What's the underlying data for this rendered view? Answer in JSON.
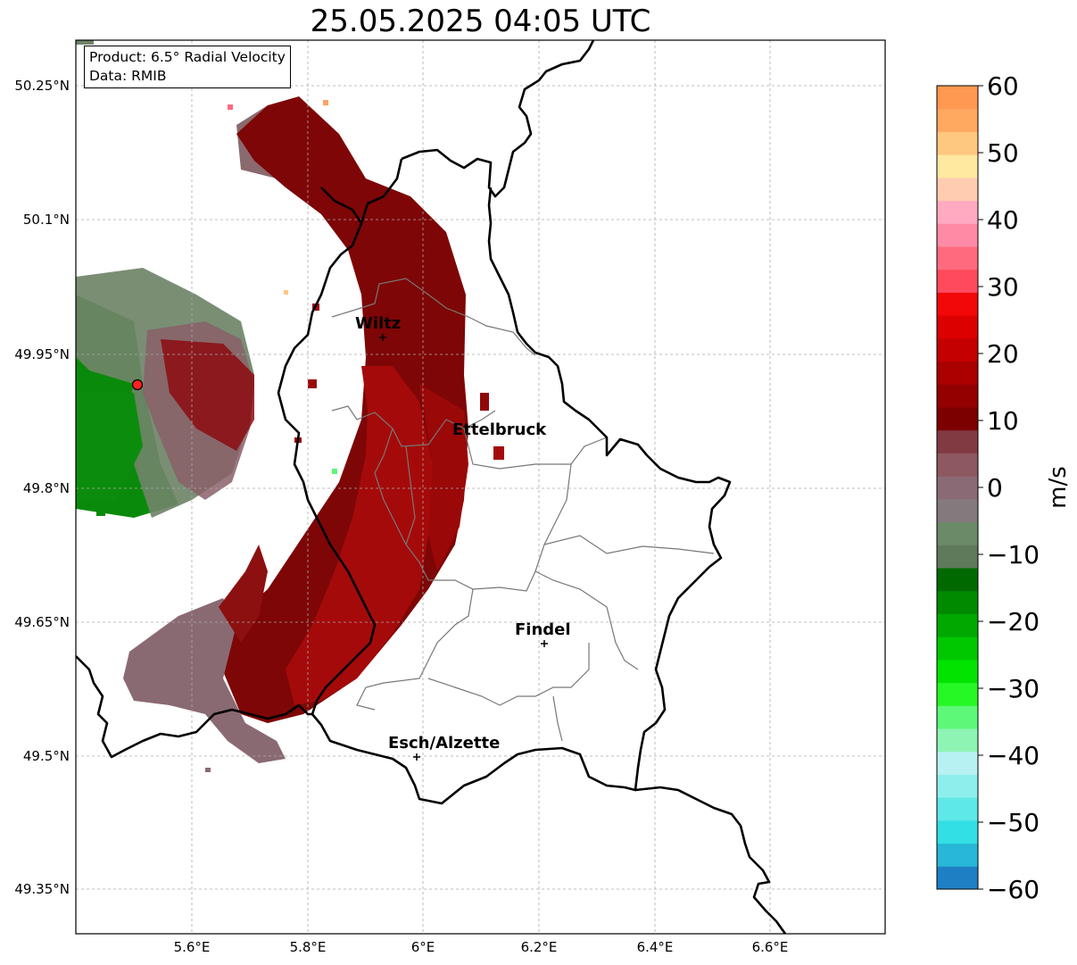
{
  "title": "25.05.2025 04:05 UTC",
  "info": {
    "product_line": "Product: 6.5° Radial Velocity",
    "data_line": "Data: RMIB"
  },
  "map": {
    "lon_ticks": [
      "5.6°E",
      "5.8°E",
      "6°E",
      "6.2°E",
      "6.4°E",
      "6.6°E"
    ],
    "lat_ticks": [
      "50.25°N",
      "50.1°N",
      "49.95°N",
      "49.8°N",
      "49.65°N",
      "49.5°N",
      "49.35°N"
    ],
    "gridlines": true,
    "cities": [
      {
        "name": "Wiltz",
        "lon": 5.93,
        "lat": 49.97
      },
      {
        "name": "Ettelbruck",
        "lon": 6.1,
        "lat": 49.85
      },
      {
        "name": "Findel",
        "lon": 6.21,
        "lat": 49.63
      },
      {
        "name": "Esch/Alzette",
        "lon": 5.99,
        "lat": 49.5
      }
    ],
    "radar_site": {
      "lon": 5.5,
      "lat": 49.915
    }
  },
  "colorbar": {
    "label": "m/s",
    "min": -60,
    "max": 60,
    "ticks": [
      "60",
      "50",
      "40",
      "30",
      "20",
      "10",
      "0",
      "−10",
      "−20",
      "−30",
      "−40",
      "−50",
      "−60"
    ],
    "colors": [
      "#1f7fc4",
      "#28b7d6",
      "#31dfe4",
      "#5fe8e8",
      "#8eeeec",
      "#b7f1f1",
      "#8ef4b4",
      "#5ef878",
      "#26f826",
      "#00e400",
      "#00c800",
      "#00a800",
      "#008a00",
      "#006a00",
      "#5e7a5a",
      "#6a8a68",
      "#847a7e",
      "#8a6a74",
      "#8e5860",
      "#823a42",
      "#7c0000",
      "#940000",
      "#aa0000",
      "#c40000",
      "#dc0000",
      "#f20808",
      "#ff4a5e",
      "#ff6a7e",
      "#ff8aa6",
      "#ffaac0",
      "#ffccb0",
      "#ffe8a0",
      "#ffc880",
      "#ffa860",
      "#ff9850"
    ]
  }
}
